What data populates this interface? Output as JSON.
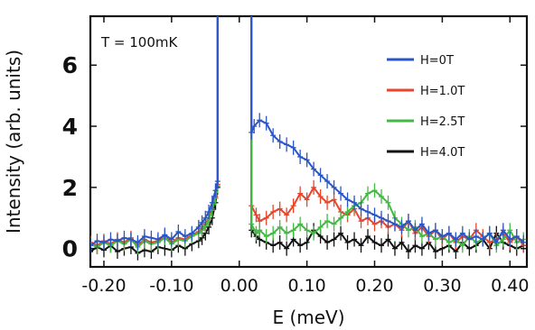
{
  "chart_data": {
    "type": "line",
    "title": "",
    "annotation": "T = 100mK",
    "xlabel": "E (meV)",
    "ylabel": "Intensity (arb. units)",
    "xlim": [
      -0.22,
      0.425
    ],
    "ylim": [
      -0.6,
      7.6
    ],
    "xticks": [
      -0.2,
      -0.1,
      0.0,
      0.1,
      0.2,
      0.3,
      0.4
    ],
    "xtick_labels": [
      "-0.20",
      "-0.10",
      "0.00",
      "0.10",
      "0.20",
      "0.30",
      "0.40"
    ],
    "yticks": [
      0,
      2,
      4,
      6
    ],
    "ytick_labels": [
      "0",
      "2",
      "4",
      "6"
    ],
    "legend_position": "upper-right",
    "series": [
      {
        "name": "H=0T",
        "color": "#2a55c8",
        "left": {
          "x": [
            -0.22,
            -0.21,
            -0.2,
            -0.19,
            -0.18,
            -0.17,
            -0.16,
            -0.15,
            -0.14,
            -0.13,
            -0.12,
            -0.11,
            -0.1,
            -0.09,
            -0.08,
            -0.07,
            -0.06,
            -0.055,
            -0.05,
            -0.045,
            -0.04,
            -0.035,
            -0.032
          ],
          "y": [
            0.1,
            0.25,
            0.2,
            0.3,
            0.25,
            0.35,
            0.3,
            0.2,
            0.4,
            0.35,
            0.3,
            0.45,
            0.3,
            0.55,
            0.4,
            0.5,
            0.7,
            0.85,
            1.0,
            1.2,
            1.5,
            1.9,
            2.2
          ]
        },
        "right": {
          "x": [
            0.018,
            0.022,
            0.03,
            0.04,
            0.05,
            0.06,
            0.07,
            0.08,
            0.09,
            0.1,
            0.11,
            0.12,
            0.13,
            0.14,
            0.15,
            0.16,
            0.17,
            0.18,
            0.19,
            0.2,
            0.21,
            0.22,
            0.23,
            0.24,
            0.25,
            0.26,
            0.27,
            0.28,
            0.29,
            0.3,
            0.31,
            0.32,
            0.33,
            0.34,
            0.35,
            0.36,
            0.37,
            0.38,
            0.39,
            0.4,
            0.41,
            0.42
          ],
          "y": [
            3.8,
            4.0,
            4.2,
            4.1,
            3.7,
            3.5,
            3.4,
            3.3,
            3.0,
            2.9,
            2.6,
            2.4,
            2.2,
            2.0,
            1.8,
            1.6,
            1.5,
            1.3,
            1.2,
            1.1,
            1.0,
            0.9,
            0.8,
            0.7,
            0.9,
            0.6,
            0.8,
            0.5,
            0.6,
            0.4,
            0.5,
            0.3,
            0.5,
            0.3,
            0.4,
            0.3,
            0.5,
            0.2,
            0.6,
            0.3,
            0.4,
            0.2
          ]
        }
      },
      {
        "name": "H=1.0T",
        "color": "#e8452a",
        "left": {
          "x": [
            -0.22,
            -0.21,
            -0.2,
            -0.19,
            -0.18,
            -0.17,
            -0.16,
            -0.15,
            -0.14,
            -0.13,
            -0.12,
            -0.11,
            -0.1,
            -0.09,
            -0.08,
            -0.07,
            -0.06,
            -0.055,
            -0.05,
            -0.045,
            -0.04,
            -0.035,
            -0.032
          ],
          "y": [
            0.2,
            0.1,
            0.25,
            0.15,
            0.3,
            0.2,
            0.35,
            0.1,
            0.3,
            0.2,
            0.25,
            0.4,
            0.2,
            0.35,
            0.3,
            0.45,
            0.55,
            0.65,
            0.8,
            1.0,
            1.3,
            1.7,
            2.1
          ]
        },
        "right": {
          "x": [
            0.018,
            0.025,
            0.03,
            0.04,
            0.05,
            0.06,
            0.07,
            0.08,
            0.09,
            0.1,
            0.11,
            0.12,
            0.13,
            0.14,
            0.15,
            0.16,
            0.17,
            0.18,
            0.19,
            0.2,
            0.21,
            0.22,
            0.23,
            0.24,
            0.25,
            0.26,
            0.27,
            0.28,
            0.29,
            0.3,
            0.31,
            0.32,
            0.33,
            0.34,
            0.35,
            0.36,
            0.37,
            0.38,
            0.39,
            0.4,
            0.41,
            0.42
          ],
          "y": [
            1.4,
            1.1,
            0.9,
            1.0,
            1.2,
            1.3,
            1.1,
            1.4,
            1.8,
            1.6,
            2.0,
            1.7,
            1.5,
            1.6,
            1.2,
            1.1,
            1.3,
            0.9,
            1.0,
            0.8,
            0.9,
            0.7,
            0.8,
            0.6,
            0.9,
            0.5,
            0.7,
            0.4,
            0.6,
            0.3,
            0.5,
            0.2,
            0.4,
            0.3,
            0.6,
            0.4,
            0.2,
            0.3,
            0.5,
            0.2,
            0.4,
            0.1
          ]
        }
      },
      {
        "name": "H=2.5T",
        "color": "#44b844",
        "left": {
          "x": [
            -0.22,
            -0.21,
            -0.2,
            -0.19,
            -0.18,
            -0.17,
            -0.16,
            -0.15,
            -0.14,
            -0.13,
            -0.12,
            -0.11,
            -0.1,
            -0.09,
            -0.08,
            -0.07,
            -0.06,
            -0.055,
            -0.05,
            -0.045,
            -0.04,
            -0.035,
            -0.032
          ],
          "y": [
            0.15,
            0.05,
            0.2,
            0.1,
            0.25,
            0.15,
            0.3,
            0.05,
            0.25,
            0.15,
            0.2,
            0.35,
            0.15,
            0.3,
            0.25,
            0.4,
            0.5,
            0.6,
            0.75,
            0.95,
            1.25,
            1.65,
            2.05
          ]
        },
        "right": {
          "x": [
            0.018,
            0.025,
            0.03,
            0.04,
            0.05,
            0.06,
            0.07,
            0.08,
            0.09,
            0.1,
            0.11,
            0.12,
            0.13,
            0.14,
            0.15,
            0.16,
            0.17,
            0.18,
            0.19,
            0.2,
            0.21,
            0.22,
            0.23,
            0.24,
            0.25,
            0.26,
            0.27,
            0.28,
            0.29,
            0.3,
            0.31,
            0.32,
            0.33,
            0.34,
            0.35,
            0.36,
            0.37,
            0.38,
            0.39,
            0.4,
            0.41,
            0.42
          ],
          "y": [
            0.8,
            0.5,
            0.6,
            0.4,
            0.5,
            0.7,
            0.5,
            0.6,
            0.8,
            0.6,
            0.5,
            0.7,
            0.9,
            0.8,
            1.0,
            1.2,
            1.4,
            1.5,
            1.8,
            1.9,
            1.7,
            1.5,
            1.0,
            0.8,
            0.6,
            0.7,
            0.4,
            0.5,
            0.3,
            0.4,
            0.2,
            0.3,
            0.1,
            0.4,
            0.2,
            0.3,
            0.5,
            0.1,
            0.3,
            0.6,
            0.2,
            0.3
          ]
        }
      },
      {
        "name": "H=4.0T",
        "color": "#111111",
        "left": {
          "x": [
            -0.22,
            -0.21,
            -0.2,
            -0.19,
            -0.18,
            -0.17,
            -0.16,
            -0.15,
            -0.14,
            -0.13,
            -0.12,
            -0.11,
            -0.1,
            -0.09,
            -0.08,
            -0.07,
            -0.06,
            -0.055,
            -0.05,
            -0.045,
            -0.04,
            -0.035,
            -0.032
          ],
          "y": [
            -0.1,
            0.05,
            -0.05,
            0.1,
            -0.1,
            0.0,
            0.05,
            -0.15,
            -0.05,
            -0.1,
            0.05,
            0.0,
            -0.05,
            0.1,
            0.0,
            0.15,
            0.25,
            0.35,
            0.5,
            0.7,
            1.0,
            1.5,
            2.0
          ]
        },
        "right": {
          "x": [
            0.018,
            0.025,
            0.03,
            0.04,
            0.05,
            0.06,
            0.07,
            0.08,
            0.09,
            0.1,
            0.11,
            0.12,
            0.13,
            0.14,
            0.15,
            0.16,
            0.17,
            0.18,
            0.19,
            0.2,
            0.21,
            0.22,
            0.23,
            0.24,
            0.25,
            0.26,
            0.27,
            0.28,
            0.29,
            0.3,
            0.31,
            0.32,
            0.33,
            0.34,
            0.35,
            0.36,
            0.37,
            0.38,
            0.39,
            0.4,
            0.41,
            0.42
          ],
          "y": [
            0.6,
            0.4,
            0.3,
            0.2,
            0.1,
            0.2,
            0.0,
            0.3,
            0.1,
            0.2,
            0.6,
            0.4,
            0.2,
            0.3,
            0.5,
            0.2,
            0.3,
            0.1,
            0.4,
            0.2,
            0.1,
            0.3,
            0.0,
            0.2,
            -0.1,
            0.1,
            0.0,
            0.2,
            -0.1,
            0.0,
            0.1,
            -0.1,
            0.2,
            0.0,
            0.1,
            0.3,
            0.0,
            0.5,
            0.2,
            0.1,
            0.0,
            0.1
          ]
        }
      }
    ],
    "elastic_peak": {
      "center": [
        -0.0275,
        0.0125
      ],
      "edges": [
        -0.032,
        0.018
      ],
      "note": "bright elastic line between the two edges rises above the plotted range"
    }
  }
}
